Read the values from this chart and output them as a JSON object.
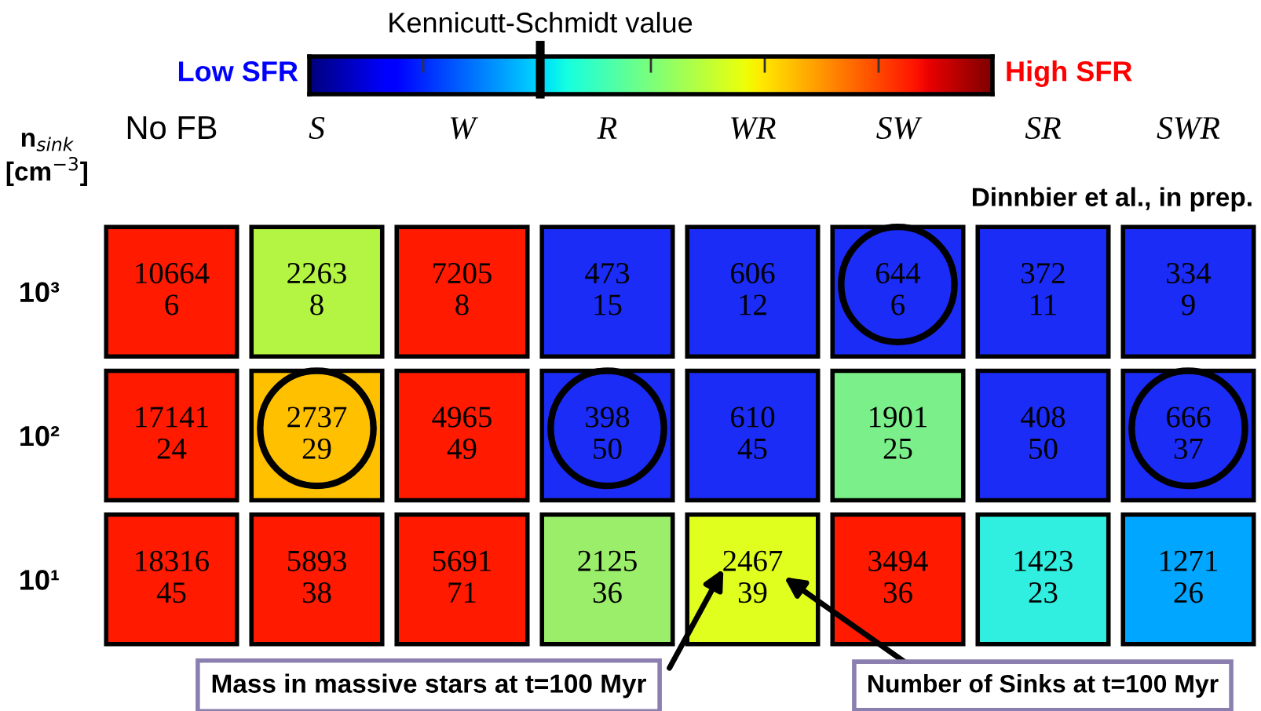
{
  "chart_data": {
    "type": "heatmap",
    "categories": [
      "No FB",
      "S",
      "W",
      "R",
      "WR",
      "SW",
      "SR",
      "SWR"
    ],
    "y_categories": [
      "10³",
      "10²",
      "10¹"
    ],
    "ylabel": "n$_{sink}$\n[cm$^{−3}$]",
    "cells": [
      [
        10664,
        2263,
        7205,
        473,
        606,
        644,
        372,
        334
      ],
      [
        17141,
        2737,
        4965,
        398,
        610,
        1901,
        408,
        666
      ],
      [
        18316,
        5893,
        5691,
        2125,
        2467,
        3494,
        1423,
        1271
      ]
    ],
    "data_labels": true,
    "colors": [
      [
        "#ff1a00",
        "#b3f542",
        "#ff1a00",
        "#1a2cf5",
        "#1a2cf5",
        "#1a2cf5",
        "#1a2cf5",
        "#1a2cf5"
      ],
      [
        "#ff1a00",
        "#ffc000",
        "#ff1a00",
        "#1a2cf5",
        "#1a2cf5",
        "#7bf08a",
        "#1a2cf5",
        "#1a2cf5"
      ],
      [
        "#ff1a00",
        "#ff1a00",
        "#ff1a00",
        "#9aee6a",
        "#e0ff1f",
        "#ff1a00",
        "#30efe0",
        "#00a6ff"
      ]
    ],
    "annotations": [
      "Kennicutt-Schmidt value",
      "Low SFR",
      "High SFR",
      "Dinnbier et al., in prep.",
      "Mass in massive stars at t=100 Myr",
      "Number of Sinks at t=100 Myr",
      "6",
      "8",
      "8",
      "15",
      "12",
      "6",
      "11",
      "9",
      "24",
      "29",
      "49",
      "50",
      "45",
      "25",
      "50",
      "37",
      "45",
      "38",
      "71",
      "36",
      "39",
      "36",
      "23",
      "26"
    ]
  }
}
